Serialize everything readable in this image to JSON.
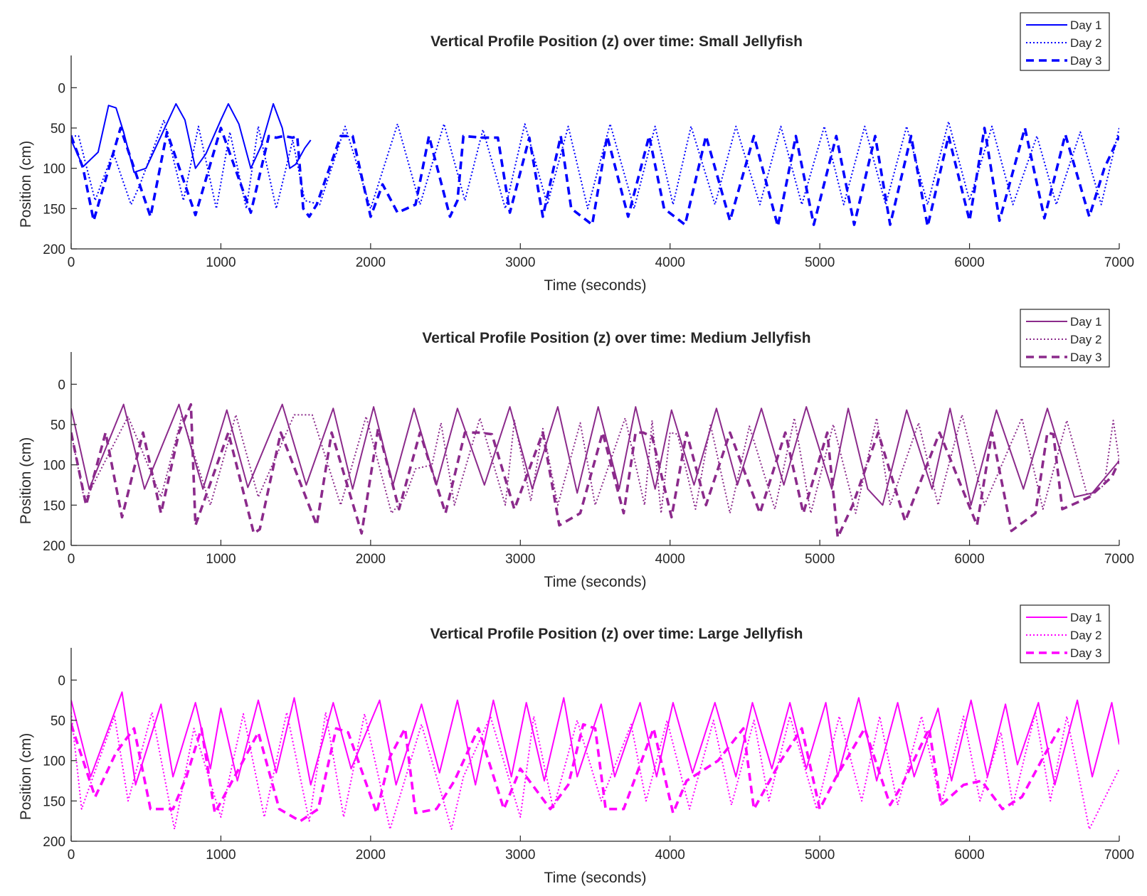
{
  "chart_data": [
    {
      "type": "line",
      "title": "Vertical Profile Position (z) over time: Small Jellyfish",
      "xlabel": "Time (seconds)",
      "ylabel": "Position (cm)",
      "xlim": [
        0,
        7000
      ],
      "ylim": [
        -40,
        200
      ],
      "y_reversed": true,
      "xticks": [
        "0",
        "1000",
        "2000",
        "3000",
        "4000",
        "5000",
        "6000",
        "7000"
      ],
      "yticks": [
        "0",
        "50",
        "100",
        "150",
        "200"
      ],
      "color": "#0000ff",
      "legend": [
        "Day 1",
        "Day 2",
        "Day 3"
      ],
      "legend_position": "top-right",
      "grid": false,
      "series": [
        {
          "name": "Day 1",
          "style": "solid",
          "x": [
            0,
            80,
            180,
            250,
            300,
            350,
            420,
            500,
            600,
            700,
            760,
            830,
            900,
            1000,
            1050,
            1120,
            1200,
            1270,
            1350,
            1410,
            1460,
            1500,
            1530,
            1560,
            1600
          ],
          "y": [
            65,
            98,
            80,
            22,
            25,
            55,
            105,
            100,
            60,
            20,
            40,
            100,
            82,
            40,
            20,
            45,
            100,
            72,
            20,
            50,
            100,
            95,
            85,
            75,
            65
          ]
        },
        {
          "name": "Day 2",
          "style": "dotted",
          "x": [
            0,
            50,
            160,
            280,
            400,
            460,
            620,
            750,
            850,
            970,
            1060,
            1170,
            1250,
            1370,
            1480,
            1560,
            1660,
            1830,
            2000,
            2180,
            2330,
            2490,
            2630,
            2750,
            2900,
            3030,
            3180,
            3320,
            3450,
            3600,
            3760,
            3900,
            4020,
            4140,
            4300,
            4440,
            4600,
            4740,
            4880,
            5030,
            5160,
            5300,
            5440,
            5580,
            5720,
            5860,
            6000,
            6150,
            6290,
            6450,
            6580,
            6740,
            6880,
            7000
          ],
          "y": [
            60,
            60,
            140,
            80,
            145,
            120,
            40,
            140,
            48,
            150,
            55,
            150,
            48,
            150,
            65,
            140,
            145,
            48,
            150,
            45,
            145,
            45,
            140,
            52,
            150,
            45,
            145,
            48,
            150,
            45,
            150,
            48,
            145,
            48,
            145,
            48,
            145,
            48,
            145,
            48,
            145,
            48,
            145,
            48,
            145,
            42,
            140,
            48,
            145,
            60,
            145,
            55,
            145,
            50
          ]
        },
        {
          "name": "Day 3",
          "style": "dashed",
          "x": [
            0,
            80,
            150,
            330,
            530,
            640,
            830,
            1000,
            1200,
            1320,
            1370,
            1420,
            1480,
            1510,
            1550,
            1590,
            1640,
            1800,
            1880,
            2000,
            2080,
            2180,
            2300,
            2390,
            2530,
            2580,
            2620,
            2750,
            2850,
            2930,
            3060,
            3150,
            3270,
            3340,
            3480,
            3580,
            3720,
            3860,
            3960,
            4100,
            4240,
            4400,
            4560,
            4720,
            4840,
            4960,
            5110,
            5230,
            5370,
            5470,
            5610,
            5720,
            5860,
            6000,
            6100,
            6200,
            6370,
            6500,
            6640,
            6800,
            6900,
            7000
          ],
          "y": [
            60,
            100,
            165,
            50,
            160,
            55,
            158,
            50,
            155,
            60,
            62,
            60,
            62,
            60,
            150,
            160,
            145,
            60,
            60,
            160,
            120,
            155,
            145,
            60,
            160,
            140,
            60,
            62,
            62,
            155,
            62,
            160,
            60,
            150,
            170,
            60,
            160,
            60,
            150,
            170,
            60,
            165,
            60,
            172,
            60,
            170,
            60,
            170,
            60,
            170,
            60,
            172,
            60,
            165,
            50,
            165,
            50,
            162,
            58,
            160,
            100,
            60
          ]
        }
      ]
    },
    {
      "type": "line",
      "title": "Vertical Profile Position (z) over time: Medium Jellyfish",
      "xlabel": "Time (seconds)",
      "ylabel": "Position (cm)",
      "xlim": [
        0,
        7000
      ],
      "ylim": [
        -40,
        200
      ],
      "y_reversed": true,
      "xticks": [
        "0",
        "1000",
        "2000",
        "3000",
        "4000",
        "5000",
        "6000",
        "7000"
      ],
      "yticks": [
        "0",
        "50",
        "100",
        "150",
        "200"
      ],
      "color": "#8b2a8b",
      "legend": [
        "Day 1",
        "Day 2",
        "Day 3"
      ],
      "legend_position": "top-right",
      "grid": false,
      "series": [
        {
          "name": "Day 1",
          "style": "solid",
          "x": [
            0,
            120,
            350,
            490,
            720,
            880,
            1040,
            1180,
            1410,
            1570,
            1750,
            1880,
            2020,
            2150,
            2290,
            2440,
            2580,
            2760,
            2930,
            3080,
            3250,
            3380,
            3520,
            3660,
            3770,
            3900,
            4010,
            4160,
            4310,
            4450,
            4610,
            4760,
            4910,
            5080,
            5190,
            5320,
            5420,
            5580,
            5750,
            5870,
            6010,
            6180,
            6360,
            6520,
            6700,
            6820,
            7000
          ],
          "y": [
            30,
            130,
            25,
            130,
            25,
            130,
            32,
            128,
            25,
            125,
            30,
            130,
            28,
            125,
            30,
            125,
            30,
            125,
            28,
            130,
            28,
            135,
            28,
            130,
            28,
            130,
            32,
            125,
            30,
            125,
            30,
            125,
            28,
            130,
            30,
            130,
            150,
            32,
            130,
            30,
            150,
            32,
            130,
            30,
            140,
            135,
            95
          ]
        },
        {
          "name": "Day 2",
          "style": "dotted",
          "x": [
            0,
            90,
            380,
            600,
            740,
            930,
            1100,
            1250,
            1490,
            1540,
            1610,
            1800,
            1970,
            2140,
            2230,
            2300,
            2410,
            2470,
            2560,
            2730,
            2900,
            2960,
            3070,
            3150,
            3250,
            3400,
            3500,
            3700,
            3830,
            3880,
            3940,
            4000,
            4050,
            4170,
            4270,
            4400,
            4530,
            4700,
            4830,
            4940,
            5090,
            5240,
            5380,
            5470,
            5660,
            5790,
            5950,
            6100,
            6350,
            6490,
            6650,
            6790,
            6900,
            6960,
            7000
          ],
          "y": [
            60,
            145,
            40,
            140,
            40,
            150,
            38,
            140,
            38,
            38,
            38,
            150,
            40,
            160,
            140,
            105,
            100,
            48,
            150,
            42,
            150,
            45,
            145,
            55,
            150,
            48,
            150,
            42,
            150,
            45,
            160,
            60,
            62,
            155,
            50,
            160,
            52,
            155,
            42,
            160,
            50,
            160,
            42,
            150,
            48,
            150,
            38,
            150,
            42,
            155,
            45,
            140,
            125,
            45,
            95
          ]
        },
        {
          "name": "Day 3",
          "style": "dashed",
          "x": [
            0,
            100,
            230,
            340,
            480,
            600,
            720,
            800,
            830,
            1050,
            1220,
            1260,
            1400,
            1640,
            1740,
            1940,
            2050,
            2190,
            2330,
            2500,
            2630,
            2720,
            2810,
            2960,
            3150,
            3260,
            3400,
            3550,
            3690,
            3770,
            3820,
            3880,
            4010,
            4110,
            4240,
            4400,
            4600,
            4770,
            4890,
            5050,
            5120,
            5220,
            5390,
            5570,
            5800,
            6050,
            6150,
            6280,
            6440,
            6520,
            6560,
            6620,
            6800,
            6950,
            7000
          ],
          "y": [
            60,
            150,
            60,
            165,
            60,
            160,
            60,
            25,
            175,
            60,
            185,
            180,
            60,
            175,
            60,
            185,
            55,
            155,
            60,
            160,
            60,
            60,
            62,
            155,
            60,
            175,
            160,
            60,
            160,
            60,
            60,
            65,
            165,
            60,
            150,
            60,
            160,
            60,
            160,
            60,
            190,
            150,
            60,
            170,
            60,
            175,
            60,
            182,
            160,
            60,
            62,
            155,
            140,
            115,
            95
          ]
        }
      ]
    },
    {
      "type": "line",
      "title": "Vertical Profile Position (z) over time: Large Jellyfish",
      "xlabel": "Time (seconds)",
      "ylabel": "Position (cm)",
      "xlim": [
        0,
        7000
      ],
      "ylim": [
        -40,
        200
      ],
      "y_reversed": true,
      "xticks": [
        "0",
        "1000",
        "2000",
        "3000",
        "4000",
        "5000",
        "6000",
        "7000"
      ],
      "yticks": [
        "0",
        "50",
        "100",
        "150",
        "200"
      ],
      "color": "#ff00ff",
      "legend": [
        "Day 1",
        "Day 2",
        "Day 3"
      ],
      "legend_position": "top-right",
      "grid": false,
      "series": [
        {
          "name": "Day 1",
          "style": "solid",
          "x": [
            0,
            130,
            340,
            430,
            600,
            680,
            830,
            930,
            1000,
            1110,
            1250,
            1370,
            1490,
            1600,
            1750,
            1870,
            2060,
            2170,
            2340,
            2460,
            2580,
            2700,
            2820,
            2940,
            3040,
            3160,
            3290,
            3380,
            3540,
            3630,
            3800,
            3910,
            4020,
            4150,
            4300,
            4440,
            4550,
            4680,
            4800,
            4910,
            5040,
            5120,
            5260,
            5380,
            5520,
            5630,
            5790,
            5880,
            6010,
            6120,
            6240,
            6320,
            6460,
            6570,
            6720,
            6820,
            6950,
            7000
          ],
          "y": [
            25,
            120,
            15,
            130,
            30,
            120,
            28,
            110,
            35,
            125,
            25,
            115,
            22,
            130,
            28,
            110,
            25,
            130,
            30,
            115,
            25,
            130,
            25,
            120,
            28,
            125,
            22,
            120,
            30,
            120,
            28,
            120,
            28,
            115,
            28,
            120,
            28,
            110,
            28,
            110,
            28,
            120,
            22,
            125,
            28,
            120,
            35,
            125,
            25,
            120,
            30,
            105,
            28,
            130,
            25,
            120,
            28,
            80
          ]
        },
        {
          "name": "Day 2",
          "style": "dotted",
          "x": [
            0,
            70,
            290,
            380,
            540,
            690,
            820,
            1000,
            1150,
            1290,
            1440,
            1590,
            1700,
            1820,
            1960,
            2130,
            2340,
            2540,
            2620,
            2800,
            3000,
            3090,
            3220,
            3380,
            3540,
            3740,
            3840,
            3980,
            4130,
            4290,
            4410,
            4560,
            4660,
            4800,
            4980,
            5130,
            5280,
            5400,
            5520,
            5680,
            5810,
            5960,
            6070,
            6210,
            6290,
            6440,
            6540,
            6650,
            6800,
            7000
          ],
          "y": [
            40,
            160,
            45,
            150,
            40,
            185,
            60,
            170,
            42,
            170,
            40,
            175,
            40,
            170,
            42,
            185,
            55,
            185,
            120,
            45,
            170,
            45,
            160,
            50,
            150,
            55,
            150,
            50,
            160,
            50,
            155,
            50,
            150,
            45,
            160,
            45,
            150,
            45,
            155,
            45,
            155,
            45,
            150,
            65,
            155,
            40,
            150,
            45,
            185,
            110
          ]
        },
        {
          "name": "Day 3",
          "style": "dashed",
          "x": [
            0,
            160,
            300,
            420,
            530,
            680,
            770,
            870,
            960,
            1120,
            1250,
            1390,
            1530,
            1650,
            1770,
            1850,
            2040,
            2130,
            2230,
            2300,
            2440,
            2560,
            2720,
            2890,
            3000,
            3200,
            3320,
            3420,
            3500,
            3570,
            3690,
            3890,
            4020,
            4110,
            4320,
            4490,
            4560,
            4740,
            4880,
            5000,
            5110,
            5300,
            5470,
            5550,
            5730,
            5810,
            5960,
            6080,
            6220,
            6350,
            6480,
            6600
          ],
          "y": [
            55,
            145,
            90,
            60,
            160,
            160,
            120,
            60,
            165,
            110,
            65,
            160,
            175,
            160,
            60,
            65,
            165,
            95,
            60,
            165,
            160,
            125,
            60,
            160,
            110,
            160,
            130,
            55,
            60,
            160,
            160,
            60,
            165,
            125,
            100,
            60,
            160,
            100,
            60,
            160,
            120,
            60,
            155,
            130,
            60,
            155,
            130,
            125,
            160,
            145,
            100,
            60
          ]
        }
      ]
    }
  ]
}
